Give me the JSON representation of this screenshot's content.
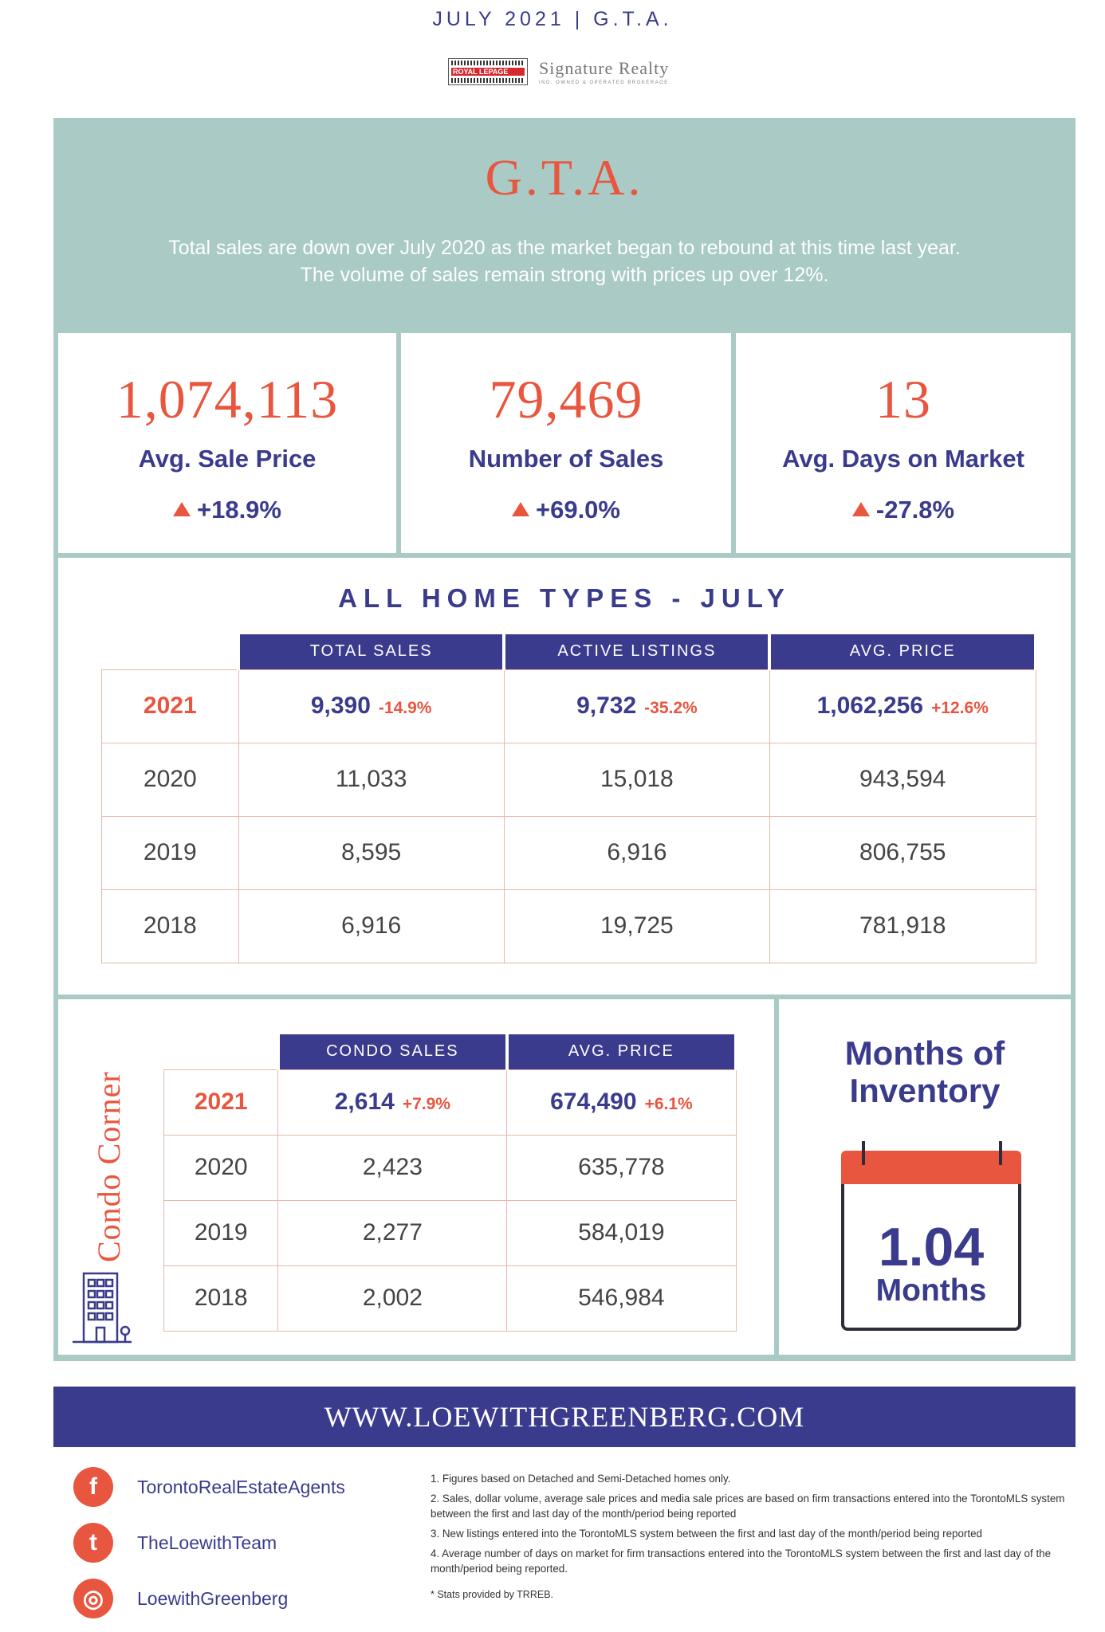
{
  "header": {
    "date_region": "JULY 2021 | G.T.A."
  },
  "brand": {
    "royal": "ROYAL LEPAGE",
    "signature": "Signature Realty",
    "sub": "IND. OWNED & OPERATED BROKERAGE"
  },
  "hero": {
    "title": "G.T.A.",
    "text_line1": "Total sales are down over July 2020 as the market began to rebound at this time last year.",
    "text_line2": "The volume of sales remain strong with prices up over 12%."
  },
  "stats": [
    {
      "value": "1,074,113",
      "label": "Avg. Sale Price",
      "change": "+18.9%"
    },
    {
      "value": "79,469",
      "label": "Number of Sales",
      "change": "+69.0%"
    },
    {
      "value": "13",
      "label": "Avg. Days on Market",
      "change": "-27.8%"
    }
  ],
  "all_home": {
    "title": "ALL HOME TYPES - JULY",
    "columns": [
      "TOTAL SALES",
      "ACTIVE LISTINGS",
      "AVG. PRICE"
    ],
    "highlight": {
      "year": "2021",
      "values": [
        "9,390",
        "9,732",
        "1,062,256"
      ],
      "changes": [
        "-14.9%",
        "-35.2%",
        "+12.6%"
      ]
    },
    "rows": [
      {
        "year": "2020",
        "values": [
          "11,033",
          "15,018",
          "943,594"
        ]
      },
      {
        "year": "2019",
        "values": [
          "8,595",
          "6,916",
          "806,755"
        ]
      },
      {
        "year": "2018",
        "values": [
          "6,916",
          "19,725",
          "781,918"
        ]
      }
    ]
  },
  "condo": {
    "title": "Condo Corner",
    "columns": [
      "CONDO SALES",
      "AVG. PRICE"
    ],
    "highlight": {
      "year": "2021",
      "values": [
        "2,614",
        "674,490"
      ],
      "changes": [
        "+7.9%",
        "+6.1%"
      ]
    },
    "rows": [
      {
        "year": "2020",
        "values": [
          "2,423",
          "635,778"
        ]
      },
      {
        "year": "2019",
        "values": [
          "2,277",
          "584,019"
        ]
      },
      {
        "year": "2018",
        "values": [
          "2,002",
          "546,984"
        ]
      }
    ]
  },
  "inventory": {
    "title_line1": "Months of",
    "title_line2": "Inventory",
    "value": "1.04",
    "unit": "Months"
  },
  "website": "WWW.LOEWITHGREENBERG.COM",
  "social": [
    {
      "icon": "facebook-icon",
      "glyph": "f",
      "label": "TorontoRealEstateAgents"
    },
    {
      "icon": "twitter-icon",
      "glyph": "t",
      "label": "TheLoewithTeam"
    },
    {
      "icon": "instagram-icon",
      "glyph": "◎",
      "label": "LoewithGreenberg"
    }
  ],
  "notes": [
    "1. Figures based on Detached and Semi-Detached homes only.",
    "2. Sales, dollar volume, average sale prices and media sale prices are based on firm transactions entered into the TorontoMLS system between the first and last day of the month/period being reported",
    "3. New listings entered into the TorontoMLS system between the first and last day of the month/period being reported",
    "4. Average number of days on market for firm transactions entered into the TorontoMLS system between the first and last day of the month/period being reported."
  ],
  "stats_source": "* Stats provided by TRREB.",
  "colors": {
    "navy": "#3a3b8c",
    "coral": "#e8563f",
    "teal": "#a9cac5"
  }
}
